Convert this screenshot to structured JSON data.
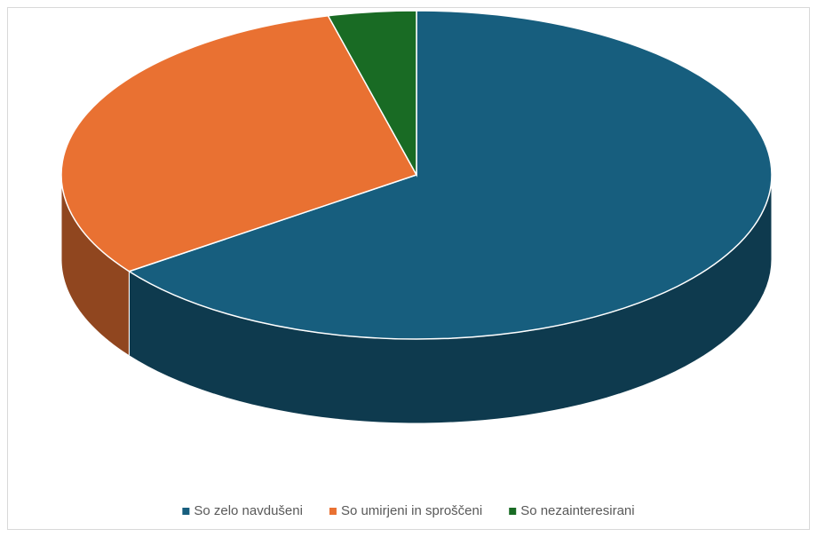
{
  "chart_data": {
    "type": "pie",
    "style": "3d",
    "categories": [
      "So zelo navdušeni",
      "So umirjeni in sproščeni",
      "So nezainteresirani"
    ],
    "values": [
      65,
      31,
      4
    ],
    "colors": [
      "#175e7e",
      "#e97132",
      "#196b24"
    ],
    "legend": "bottom"
  }
}
